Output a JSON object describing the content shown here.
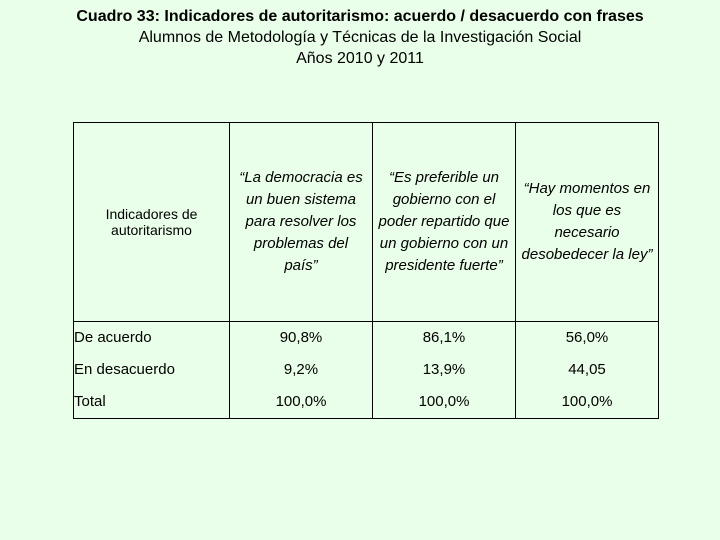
{
  "header": {
    "title": "Cuadro 33: Indicadores de autoritarismo: acuerdo / desacuerdo con frases",
    "subtitle": "Alumnos de Metodología y Técnicas de la Investigación Social",
    "years": "Años 2010 y 2011"
  },
  "table": {
    "corner_label": "Indicadores de autoritarismo",
    "columns": [
      "“La democracia es un buen sistema para resolver los problemas del país”",
      "“Es preferible un gobierno con el poder repartido que un gobierno con un presidente fuerte”",
      "“Hay momentos en los que es necesario desobedecer la ley”"
    ],
    "rows": [
      {
        "label": "De acuerdo",
        "values": [
          "90,8%",
          "86,1%",
          "56,0%"
        ]
      },
      {
        "label": "En desacuerdo",
        "values": [
          "9,2%",
          "13,9%",
          "44,05"
        ]
      },
      {
        "label": "Total",
        "values": [
          "100,0%",
          "100,0%",
          "100,0%"
        ]
      }
    ]
  }
}
